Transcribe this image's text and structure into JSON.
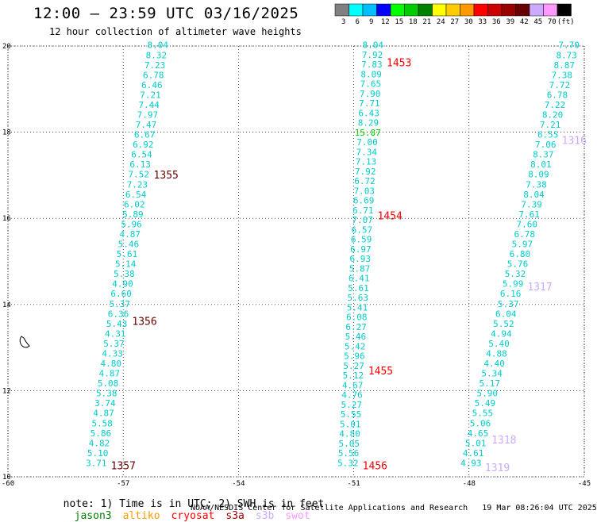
{
  "header": {
    "title": "12:00 – 23:59 UTC 03/16/2025",
    "subtitle": "12 hour collection of altimeter wave heights"
  },
  "colorbar": {
    "colors": [
      "#808080",
      "#00ffff",
      "#00bfff",
      "#0000ff",
      "#00ff00",
      "#00cc00",
      "#008000",
      "#ffff00",
      "#ffcc00",
      "#ff9900",
      "#ff0000",
      "#cc0000",
      "#990000",
      "#660000",
      "#ccaaff",
      "#ff99ff",
      "#000000"
    ],
    "labels": [
      "3",
      "6",
      "9",
      "12",
      "15",
      "18",
      "21",
      "24",
      "27",
      "30",
      "33",
      "36",
      "39",
      "42",
      "45",
      "70",
      "(ft)"
    ]
  },
  "note": {
    "prefix": "note: 1) Time is in UTC; 2) SWH is in feet",
    "satellites": [
      {
        "name": "jason3",
        "color": "#008000"
      },
      {
        "name": "altiko",
        "color": "#ff9900"
      },
      {
        "name": "cryosat",
        "color": "#ff0000"
      },
      {
        "name": "s3a",
        "color": "#990000"
      },
      {
        "name": "s3b",
        "color": "#ccaaff"
      },
      {
        "name": "swot",
        "color": "#ff99ff"
      }
    ]
  },
  "footer": {
    "agency": "NOAA/NESDIS Center for Satellite Applications and Research",
    "timestamp": "19 Mar 08:26:04 UTC 2025"
  },
  "chart_data": {
    "type": "scatter",
    "title": "12:00 – 23:59 UTC 03/16/2025",
    "subtitle": "12 hour collection of altimeter wave heights",
    "xlim": [
      -60,
      -45
    ],
    "ylim": [
      10,
      20
    ],
    "x_ticks": [
      -60,
      -57,
      -54,
      -51,
      -48,
      -45
    ],
    "y_ticks": [
      10,
      12,
      14,
      16,
      18,
      20
    ],
    "grid": true,
    "tracks": [
      {
        "lon_start": -57.7,
        "lon_end": -56.1,
        "color": "#00cccc",
        "values": [
          "3.71",
          "5.10",
          "4.82",
          "5.86",
          "5.58",
          "4.87",
          "3.74",
          "5.38",
          "5.08",
          "4.87",
          "4.80",
          "4.33",
          "5.37",
          "4.31",
          "5.43",
          "6.36",
          "5.37",
          "6.60",
          "4.90",
          "5.38",
          "5.14",
          "5.61",
          "5.46",
          "4.87",
          "5.96",
          "5.89",
          "6.02",
          "6.54",
          "7.23",
          "7.52",
          "6.13",
          "6.54",
          "6.92",
          "6.67",
          "7.47",
          "7.97",
          "7.44",
          "7.21",
          "6.46",
          "6.78",
          "7.23",
          "8.32",
          "8.04"
        ],
        "time_labels": [
          {
            "text": "1357",
            "lat": 10.25,
            "color": "#660000"
          },
          {
            "text": "1356",
            "lat": 13.6,
            "color": "#660000"
          },
          {
            "text": "1355",
            "lat": 17.0,
            "color": "#660000"
          }
        ]
      },
      {
        "lon_start": -51.15,
        "lon_end": -50.5,
        "color": "#00cccc",
        "values": [
          "5.32",
          "5.56",
          "5.05",
          "4.80",
          "5.01",
          "5.55",
          "5.27",
          "4.76",
          "4.67",
          "5.12",
          "5.27",
          "5.96",
          "5.42",
          "5.46",
          "6.27",
          "6.08",
          "5.41",
          "5.63",
          "5.61",
          "6.41",
          "5.87",
          "6.93",
          "6.97",
          "6.59",
          "6.57",
          "7.07",
          "6.71",
          "6.69",
          "7.03",
          "6.72",
          "7.92",
          "7.13",
          "7.34",
          "7.00",
          "15.87",
          "8.29",
          "6.43",
          "7.71",
          "7.90",
          "7.65",
          "8.09",
          "7.83",
          "7.92",
          "8.04"
        ],
        "highlight": {
          "value": "15.87",
          "color": "#00cc00"
        },
        "time_labels": [
          {
            "text": "1456",
            "lat": 10.25,
            "color": "#ff0000"
          },
          {
            "text": "1455",
            "lat": 12.45,
            "color": "#ff0000"
          },
          {
            "text": "1454",
            "lat": 16.05,
            "color": "#ff0000"
          },
          {
            "text": "1453",
            "lat": 19.6,
            "color": "#ff0000"
          }
        ]
      },
      {
        "lon_start": -47.95,
        "lon_end": -45.4,
        "color": "#00cccc",
        "values": [
          "4.93",
          "4.61",
          "5.01",
          "4.65",
          "5.06",
          "5.55",
          "5.49",
          "5.90",
          "5.17",
          "5.34",
          "4.40",
          "4.88",
          "5.40",
          "4.94",
          "5.52",
          "6.04",
          "5.37",
          "6.16",
          "5.99",
          "5.32",
          "5.76",
          "6.80",
          "5.97",
          "6.78",
          "7.60",
          "7.61",
          "7.39",
          "8.04",
          "7.38",
          "8.09",
          "8.01",
          "8.37",
          "7.06",
          "6.55",
          "7.21",
          "8.20",
          "7.22",
          "6.78",
          "7.72",
          "7.38",
          "8.87",
          "8.73",
          "7.70"
        ],
        "time_labels": [
          {
            "text": "1319",
            "lat": 10.2,
            "color": "#ccaaff"
          },
          {
            "text": "1318",
            "lat": 10.85,
            "color": "#ccaaff"
          },
          {
            "text": "1317",
            "lat": 14.4,
            "color": "#ccaaff"
          },
          {
            "text": "1316",
            "lat": 17.8,
            "color": "#ccaaff"
          }
        ]
      }
    ]
  }
}
